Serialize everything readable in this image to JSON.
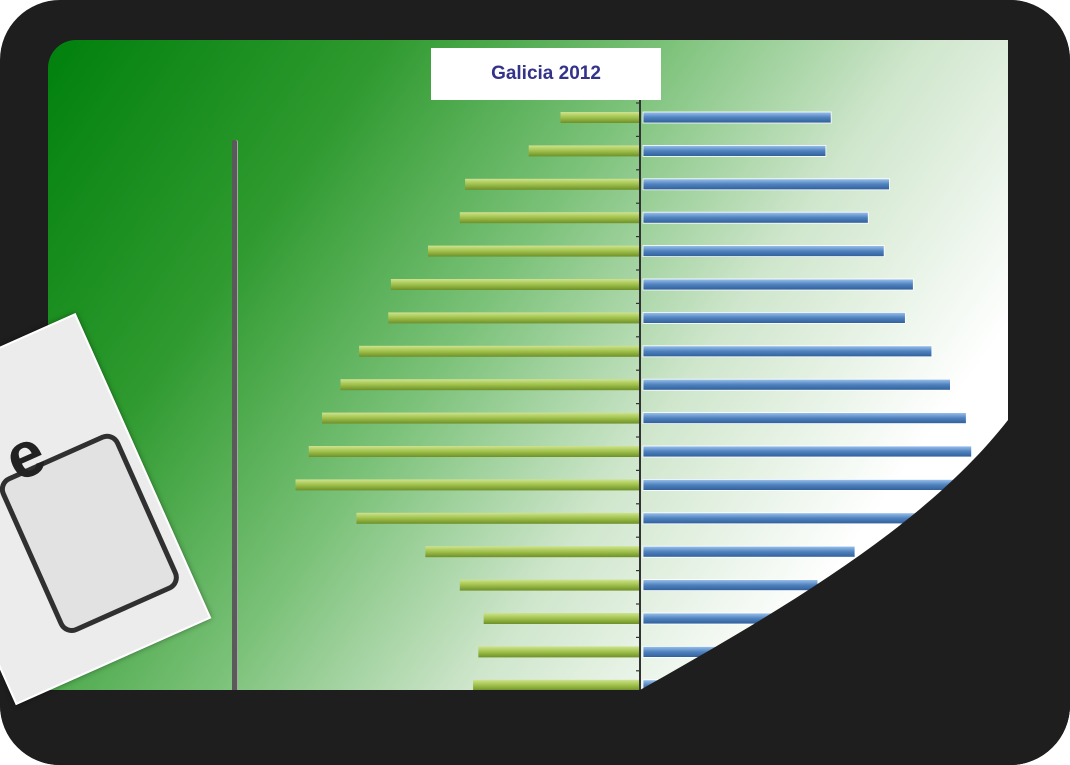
{
  "chart_data": {
    "type": "bar",
    "orientation": "horizontal-population-pyramid",
    "title": "Galicia 2012",
    "series": [
      {
        "color": "#9fc14a",
        "values": [
          3.0,
          4.2,
          6.6,
          6.8,
          8.0,
          9.4,
          9.5,
          10.6,
          11.3,
          12.0,
          12.5,
          13.0,
          10.7,
          8.1,
          6.8,
          5.9,
          6.1,
          6.3
        ]
      },
      {
        "color": "#4f81bd",
        "values": [
          7.1,
          6.9,
          9.3,
          8.5,
          9.1,
          10.2,
          9.9,
          10.9,
          11.6,
          12.2,
          12.4,
          13.0,
          10.4,
          8.0,
          6.6,
          5.7,
          5.8,
          6.0
        ]
      }
    ],
    "xlim": [
      -13.5,
      13.5
    ],
    "grid": false,
    "legend": "none"
  },
  "colors": {
    "frame": "#1e1e1e",
    "title_text": "#33338a",
    "background_dark_green": "#00800d"
  }
}
